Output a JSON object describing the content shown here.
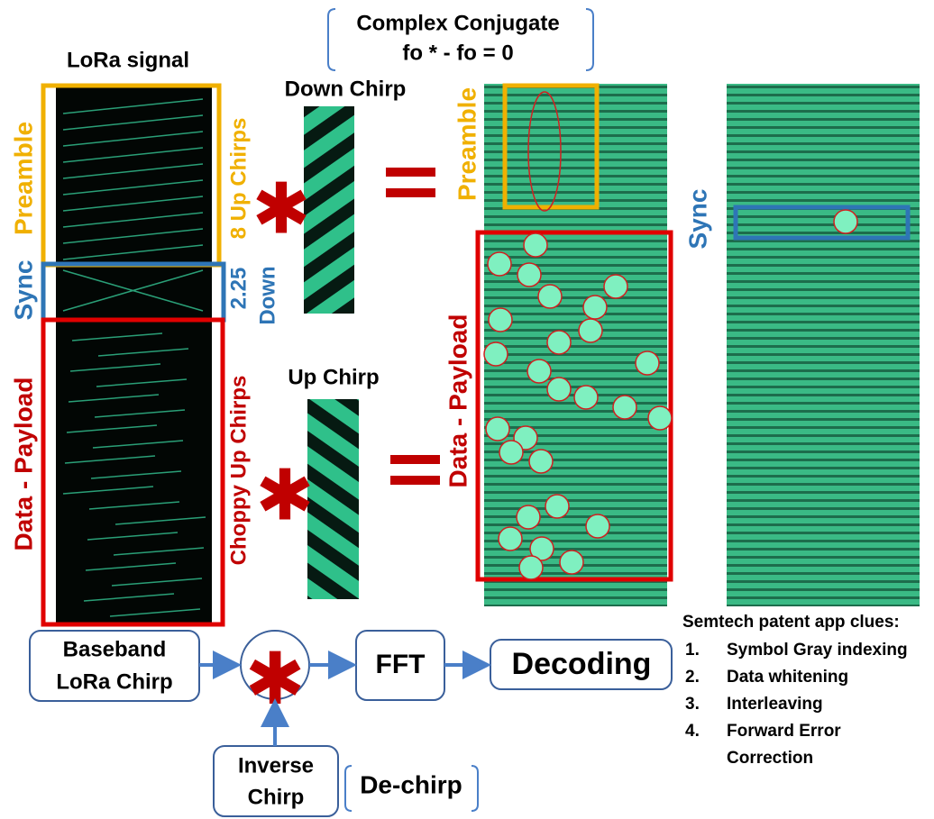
{
  "conjugate": {
    "line1": "Complex Conjugate",
    "line2": "fo  *  - fo  =  0"
  },
  "signal": {
    "title": "LoRa signal",
    "preamble": "Preamble",
    "sync": "Sync",
    "payload": "Data - Payload",
    "up_chirps": "8 Up Chirps",
    "sync_count": "2.25",
    "sync_down": "Down",
    "choppy": "Choppy Up Chirps"
  },
  "chirps": {
    "down": "Down Chirp",
    "up": "Up Chirp"
  },
  "dechirped": {
    "preamble": "Preamble",
    "payload": "Data - Payload",
    "sync": "Sync"
  },
  "flow": {
    "baseband": [
      "Baseband",
      "LoRa Chirp"
    ],
    "fft": "FFT",
    "decoding": "Decoding",
    "inverse": [
      "Inverse",
      "Chirp"
    ],
    "dechirp": "De-chirp"
  },
  "clues": {
    "title": "Semtech patent app clues:",
    "items": [
      [
        "1.",
        "Symbol Gray indexing"
      ],
      [
        "2.",
        "Data whitening"
      ],
      [
        "3.",
        "Interleaving"
      ],
      [
        "4.",
        "Forward Error",
        "Correction"
      ]
    ]
  }
}
